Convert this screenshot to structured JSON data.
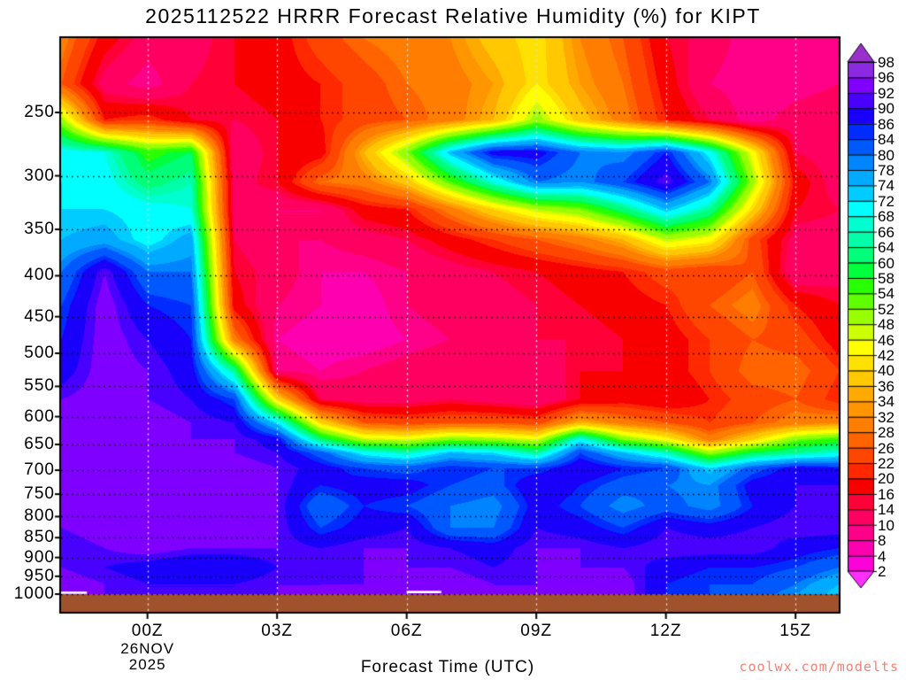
{
  "title": "2025112522 HRRR Forecast Relative Humidity (%) for KIPT",
  "watermark": "coolwx.com/modelts",
  "x_axis": {
    "title": "Forecast Time (UTC)",
    "tick_labels": [
      "00Z",
      "03Z",
      "06Z",
      "09Z",
      "12Z",
      "15Z"
    ],
    "tick_hours_after_start": [
      2,
      5,
      8,
      11,
      14,
      17
    ],
    "date_line1": "26NOV",
    "date_line2": "2025"
  },
  "y_axis": {
    "tick_labels": [
      "250",
      "300",
      "350",
      "400",
      "450",
      "500",
      "550",
      "600",
      "650",
      "700",
      "750",
      "800",
      "850",
      "900",
      "950",
      "1000"
    ]
  },
  "colorbar": {
    "tick_labels": [
      98,
      96,
      92,
      90,
      86,
      84,
      80,
      78,
      74,
      72,
      68,
      66,
      64,
      60,
      58,
      54,
      52,
      48,
      46,
      42,
      40,
      36,
      34,
      32,
      28,
      26,
      22,
      20,
      16,
      14,
      10,
      8,
      4,
      2
    ]
  },
  "chart_data": {
    "type": "heatmap",
    "subtype": "filled-contour time-height cross-section",
    "title": "2025112522 HRRR Forecast Relative Humidity (%) for KIPT",
    "xlabel": "Forecast Time (UTC)",
    "ylabel": "",
    "legend_position": "right colorbar",
    "grid": "dotted horizontal (black) at 50 hPa intervals, dashed vertical (light gray) every 3 h",
    "x_hours_utc": [
      22,
      23,
      0,
      1,
      2,
      3,
      4,
      5,
      6,
      7,
      8,
      9,
      10,
      11,
      12,
      13,
      14,
      15,
      16
    ],
    "x_tick_labels": [
      "00Z",
      "03Z",
      "06Z",
      "09Z",
      "12Z",
      "15Z"
    ],
    "x_date_label": "26NOV 2025",
    "y_scale": "log-pressure",
    "ylim_hpa": [
      202,
      1000
    ],
    "grid_h_lines_hpa": [
      250,
      300,
      350,
      400,
      450,
      500,
      550,
      600,
      650,
      700,
      750,
      800,
      850,
      900,
      950,
      1000
    ],
    "pressure_levels_hpa": [
      202,
      230,
      255,
      280,
      305,
      330,
      360,
      395,
      435,
      480,
      525,
      570,
      610,
      640,
      665,
      695,
      730,
      775,
      825,
      875,
      925,
      970,
      1000
    ],
    "rh_percent_grid": [
      [
        30,
        18,
        12,
        12,
        16,
        18,
        24,
        28,
        30,
        32,
        38,
        42,
        32,
        26,
        16,
        12,
        8,
        8,
        10
      ],
      [
        26,
        12,
        8,
        14,
        16,
        18,
        20,
        24,
        28,
        30,
        34,
        42,
        34,
        28,
        18,
        10,
        8,
        8,
        10
      ],
      [
        50,
        20,
        22,
        16,
        14,
        16,
        20,
        24,
        26,
        30,
        36,
        50,
        38,
        30,
        20,
        14,
        8,
        12,
        14
      ],
      [
        70,
        68,
        56,
        60,
        10,
        16,
        18,
        36,
        52,
        74,
        88,
        88,
        80,
        78,
        86,
        70,
        44,
        14,
        12
      ],
      [
        72,
        70,
        62,
        66,
        12,
        16,
        28,
        30,
        38,
        54,
        68,
        80,
        78,
        84,
        92,
        80,
        50,
        18,
        12
      ],
      [
        72,
        72,
        70,
        68,
        12,
        10,
        10,
        18,
        20,
        30,
        40,
        48,
        52,
        62,
        74,
        64,
        40,
        16,
        14
      ],
      [
        74,
        76,
        70,
        76,
        14,
        10,
        10,
        12,
        14,
        18,
        22,
        26,
        30,
        36,
        48,
        44,
        24,
        12,
        12
      ],
      [
        80,
        92,
        80,
        80,
        16,
        12,
        8,
        8,
        10,
        12,
        14,
        16,
        18,
        20,
        24,
        22,
        26,
        10,
        12
      ],
      [
        84,
        94,
        86,
        84,
        18,
        10,
        8,
        6,
        10,
        12,
        12,
        14,
        16,
        18,
        20,
        26,
        30,
        20,
        16
      ],
      [
        86,
        94,
        90,
        86,
        30,
        8,
        6,
        6,
        8,
        10,
        12,
        14,
        14,
        16,
        18,
        22,
        26,
        24,
        18
      ],
      [
        88,
        94,
        92,
        88,
        64,
        10,
        8,
        10,
        12,
        14,
        14,
        10,
        16,
        16,
        18,
        22,
        28,
        28,
        22
      ],
      [
        92,
        94,
        92,
        90,
        84,
        40,
        14,
        12,
        12,
        14,
        12,
        10,
        16,
        18,
        16,
        20,
        24,
        26,
        20
      ],
      [
        94,
        94,
        94,
        92,
        90,
        72,
        40,
        26,
        24,
        26,
        26,
        24,
        36,
        30,
        26,
        22,
        26,
        30,
        32
      ],
      [
        94,
        94,
        94,
        92,
        92,
        88,
        62,
        48,
        46,
        52,
        50,
        46,
        70,
        52,
        44,
        30,
        40,
        52,
        56
      ],
      [
        94,
        96,
        94,
        94,
        92,
        90,
        82,
        70,
        66,
        74,
        72,
        64,
        84,
        74,
        66,
        50,
        60,
        64,
        68
      ],
      [
        94,
        96,
        94,
        94,
        94,
        92,
        88,
        84,
        82,
        86,
        84,
        84,
        90,
        86,
        84,
        72,
        82,
        88,
        86
      ],
      [
        94,
        94,
        94,
        94,
        94,
        92,
        86,
        88,
        88,
        84,
        82,
        90,
        86,
        82,
        80,
        78,
        88,
        90,
        90
      ],
      [
        94,
        94,
        96,
        94,
        94,
        92,
        80,
        86,
        84,
        80,
        78,
        88,
        84,
        78,
        82,
        78,
        86,
        90,
        92
      ],
      [
        92,
        94,
        94,
        94,
        94,
        92,
        84,
        88,
        90,
        80,
        80,
        90,
        88,
        84,
        90,
        88,
        90,
        92,
        92
      ],
      [
        90,
        92,
        94,
        92,
        92,
        92,
        90,
        92,
        92,
        90,
        88,
        92,
        92,
        90,
        92,
        92,
        92,
        88,
        86
      ],
      [
        92,
        90,
        88,
        86,
        86,
        90,
        90,
        92,
        92,
        92,
        90,
        92,
        92,
        92,
        88,
        86,
        86,
        84,
        80
      ],
      [
        94,
        92,
        90,
        90,
        90,
        92,
        92,
        92,
        94,
        94,
        92,
        92,
        92,
        94,
        86,
        84,
        84,
        80,
        74
      ],
      [
        94,
        92,
        90,
        90,
        90,
        92,
        92,
        94,
        94,
        94,
        92,
        92,
        94,
        94,
        86,
        84,
        82,
        78,
        72
      ]
    ],
    "contour_levels": [
      2,
      4,
      8,
      10,
      14,
      16,
      20,
      22,
      26,
      28,
      32,
      34,
      36,
      40,
      42,
      46,
      48,
      52,
      54,
      58,
      60,
      64,
      66,
      68,
      72,
      74,
      78,
      80,
      84,
      86,
      90,
      92,
      96,
      98
    ],
    "band_colors": [
      "#FF00D8",
      "#FF00B0",
      "#FF0088",
      "#FF0060",
      "#FF0038",
      "#F80000",
      "#FF2800",
      "#FF4600",
      "#FF6400",
      "#FF7D00",
      "#FF9600",
      "#FFAA00",
      "#FFC800",
      "#FFE100",
      "#FFFF00",
      "#CCFF00",
      "#99FF00",
      "#60FF00",
      "#28FF00",
      "#00FF3C",
      "#00FF78",
      "#00FFA8",
      "#00FFD0",
      "#00FFFF",
      "#00CCFF",
      "#00AAFF",
      "#0084FF",
      "#0058FF",
      "#002CFF",
      "#1800FA",
      "#4800FF",
      "#8000FF",
      "#8A2BE2"
    ],
    "below_color": "#FF30FF",
    "above_color": "#9932CC",
    "ground_color": "#A0522D",
    "gridline_h_color": "#000000",
    "gridline_v_color": "#DCDCDC",
    "surface_white_marks": [
      {
        "start_hour": 0.0,
        "end_hour": 0.6,
        "pressure_hpa": 996
      },
      {
        "start_hour": 8.0,
        "end_hour": 8.8,
        "pressure_hpa": 994
      }
    ]
  }
}
